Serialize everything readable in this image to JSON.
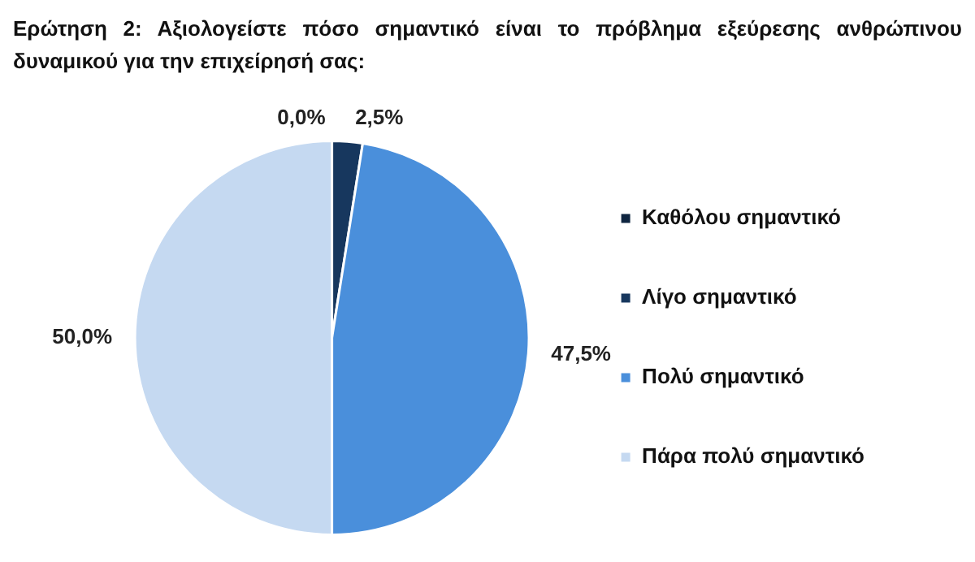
{
  "chart_data": {
    "type": "pie",
    "title": "Ερώτηση 2: Αξιολογείστε πόσο σημαντικό είναι το πρόβλημα εξεύρεσης ανθρώπινου δυναμικού για την επιχείρησή σας:",
    "categories": [
      "Καθόλου σημαντικό",
      "Λίγο σημαντικό",
      "Πολύ σημαντικό",
      "Πάρα πολύ σημαντικό"
    ],
    "values": [
      0,
      2.5,
      47.5,
      50
    ],
    "colors": [
      "#0f2540",
      "#17375e",
      "#4a8fdb",
      "#c5d9f1"
    ],
    "value_labels": [
      "0,0%",
      "2,5%",
      "47,5%",
      "50,0%"
    ],
    "legend": "right"
  }
}
